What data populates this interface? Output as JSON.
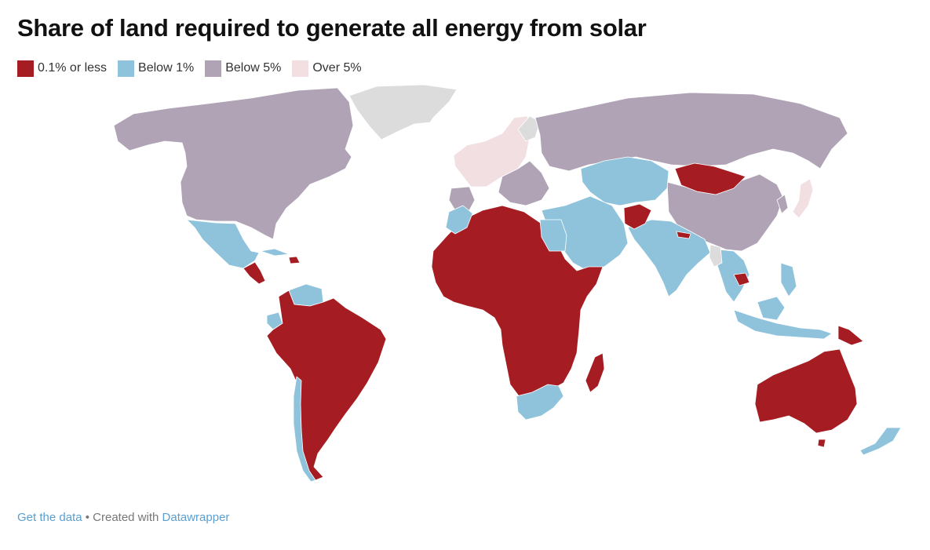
{
  "title": "Share of land required to generate all energy from solar",
  "legend": [
    {
      "label": "0.1% or less",
      "color": "#a51d22"
    },
    {
      "label": "Below 1%",
      "color": "#8fc3dc"
    },
    {
      "label": "Below 5%",
      "color": "#afa3b5"
    },
    {
      "label": "Over 5%",
      "color": "#f1dfe2"
    }
  ],
  "no_data_color": "#dcdcdc",
  "footer": {
    "get_data": "Get the data",
    "separator": " • Created with ",
    "datawrapper": "Datawrapper"
  }
}
